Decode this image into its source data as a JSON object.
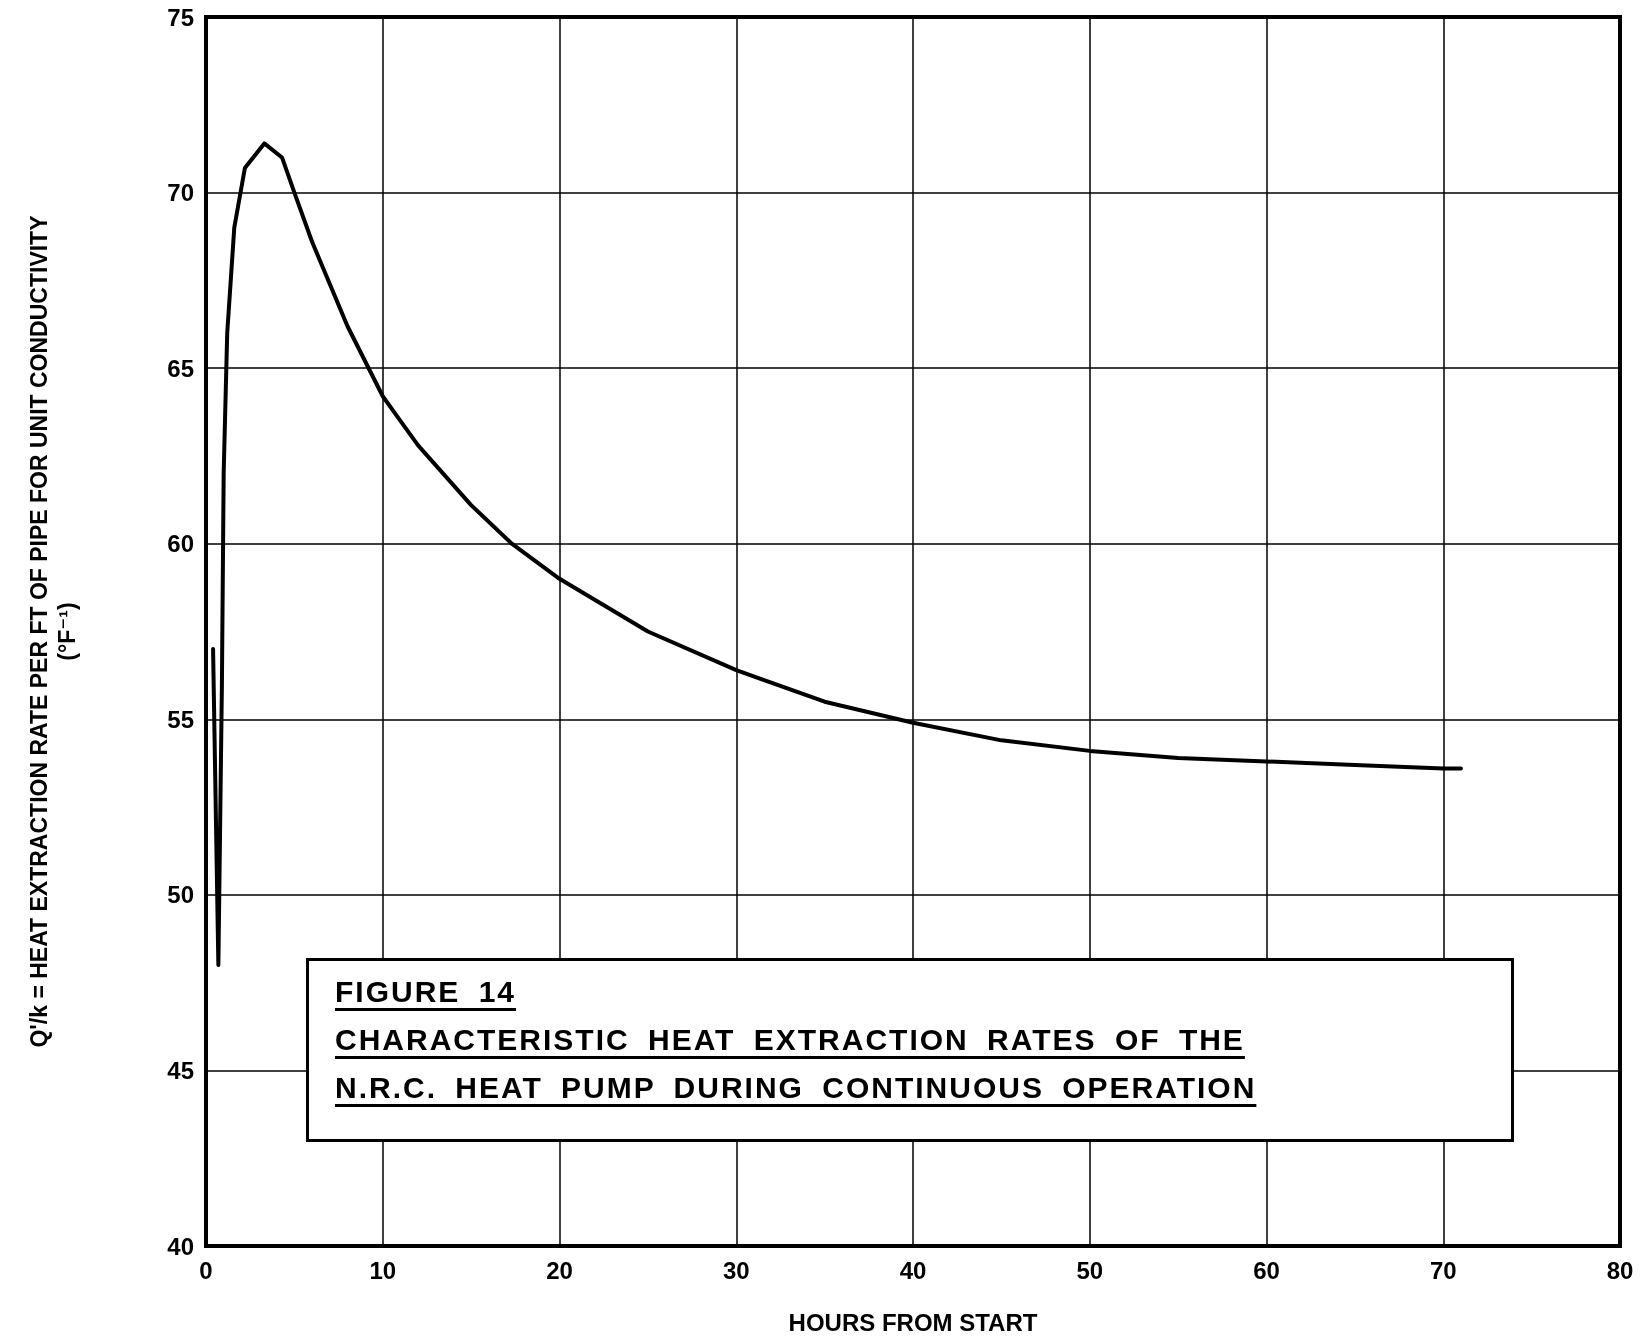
{
  "chart_data": {
    "type": "line",
    "xlabel": "HOURS FROM START",
    "ylabel": "Q'/k = HEAT EXTRACTION RATE PER FT OF PIPE FOR UNIT CONDUCTIVITY\n(°F⁻¹)",
    "annotations": [
      "FIGURE 14",
      "CHARACTERISTIC HEAT EXTRACTION RATES OF THE",
      "N.R.C. HEAT PUMP DURING CONTINUOUS OPERATION"
    ],
    "series": [
      {
        "color": "#000000",
        "x": [
          0.4,
          0.7,
          0.9,
          1.0,
          1.2,
          1.6,
          2.2,
          3.3,
          4.3,
          5,
          6,
          8,
          10,
          11,
          12,
          15,
          17.3,
          20,
          25,
          30,
          35,
          40,
          45,
          50,
          55,
          60,
          65,
          70,
          71
        ],
        "values": [
          57,
          48,
          56,
          62,
          66,
          69,
          70.7,
          71.4,
          71,
          70,
          68.6,
          66.2,
          64.2,
          63.5,
          62.8,
          61.1,
          60,
          59,
          57.5,
          56.4,
          55.5,
          54.9,
          54.4,
          54.1,
          53.9,
          53.8,
          53.7,
          53.6,
          53.6
        ]
      }
    ],
    "xlim": [
      0,
      80
    ],
    "xticks": [
      0,
      10,
      20,
      30,
      40,
      50,
      60,
      70,
      80
    ],
    "ylim": [
      40,
      75
    ],
    "yticks": [
      40,
      45,
      50,
      55,
      60,
      65,
      70,
      75
    ],
    "grid": true,
    "marker": "none",
    "line_style": "solid"
  }
}
